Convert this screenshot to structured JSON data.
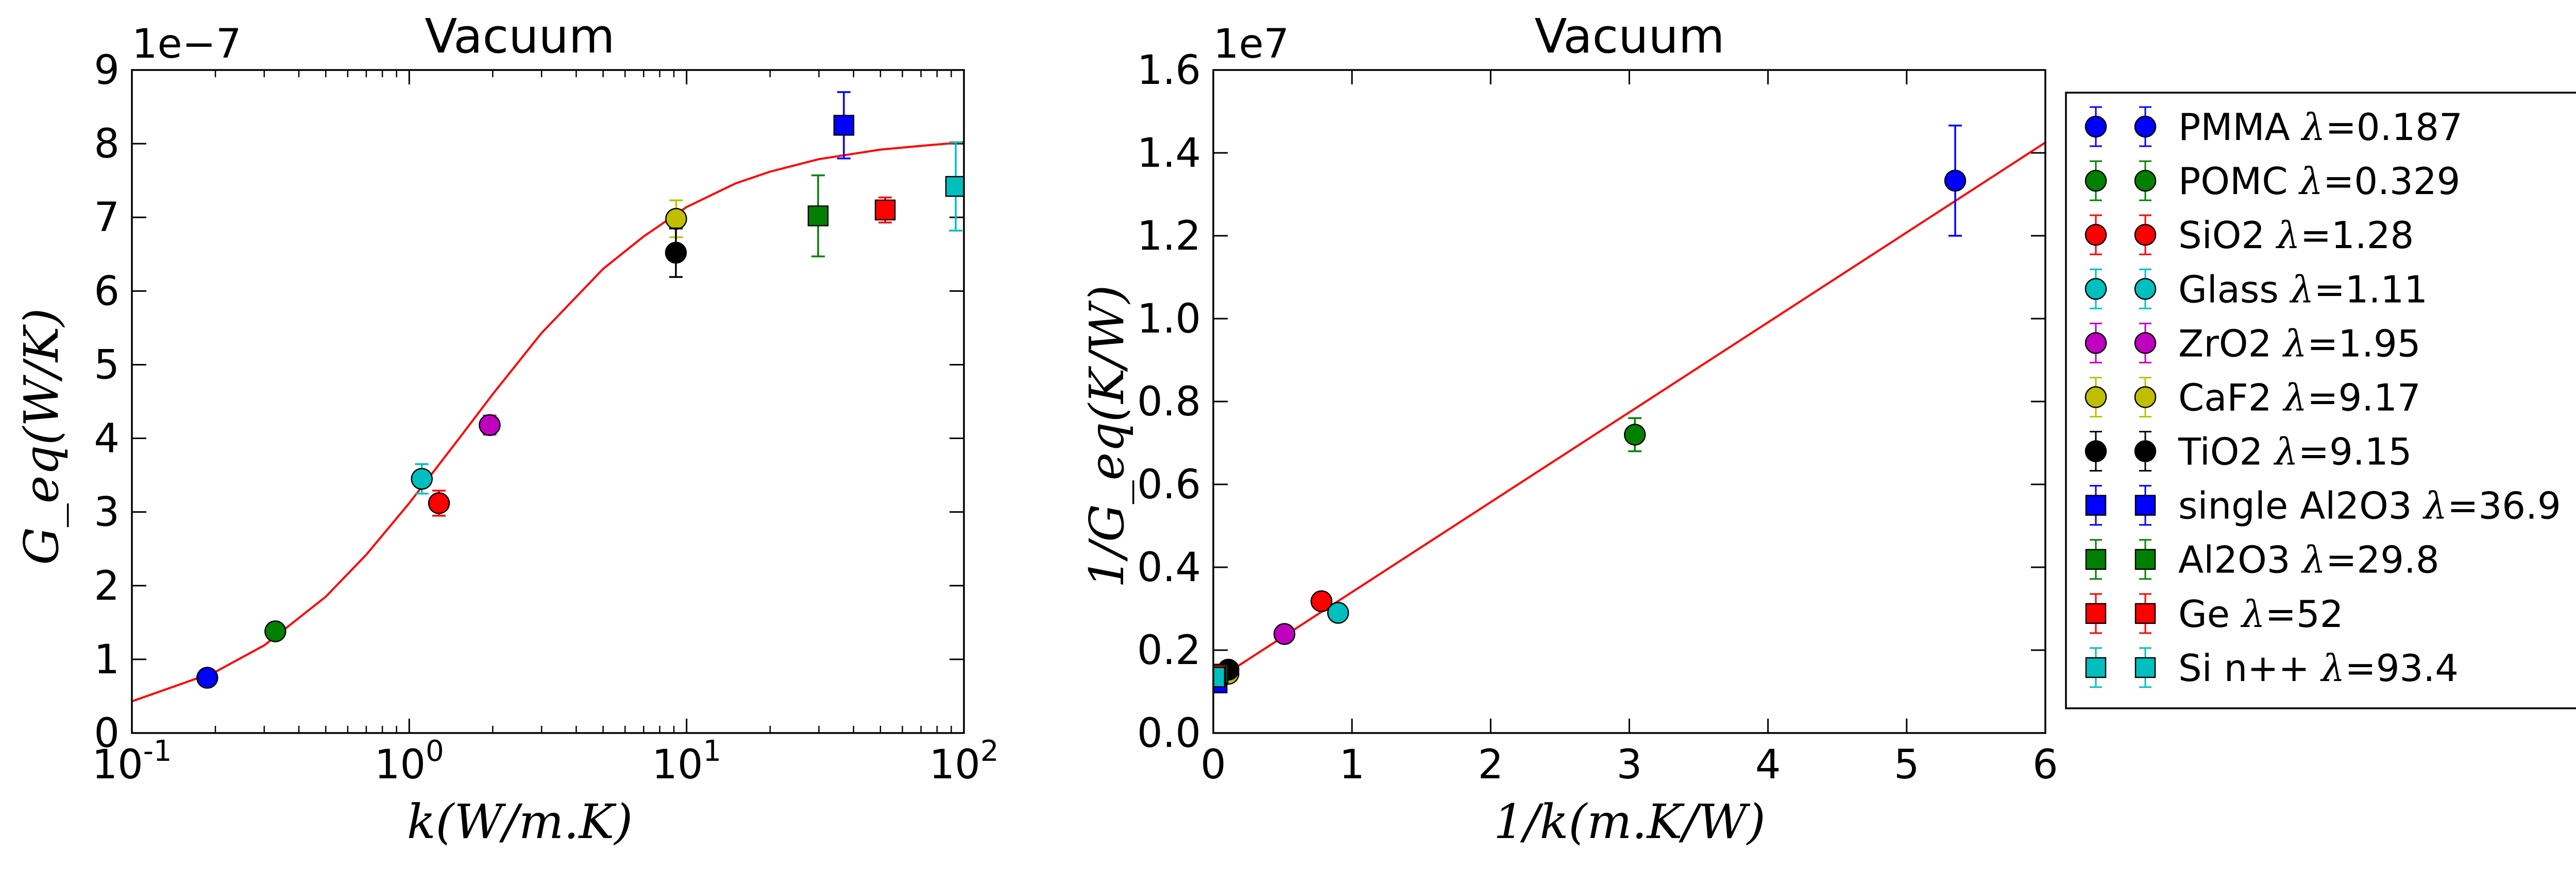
{
  "chart_data": [
    {
      "type": "scatter",
      "title": "Vacuum",
      "xlabel": "k(W/m.K)",
      "ylabel": "G_eq(W/K)",
      "xscale": "log",
      "xlim": [
        0.1,
        100
      ],
      "ylim": [
        0,
        9
      ],
      "y_multiplier": "1e−7",
      "x_ticks": [
        0.1,
        1,
        10,
        100
      ],
      "x_tick_labels": [
        [
          "10",
          "-1"
        ],
        [
          "10",
          "0"
        ],
        [
          "10",
          "1"
        ],
        [
          "10",
          "2"
        ]
      ],
      "y_ticks": [
        0,
        1,
        2,
        3,
        4,
        5,
        6,
        7,
        8,
        9
      ],
      "y_tick_labels": [
        "0",
        "1",
        "2",
        "3",
        "4",
        "5",
        "6",
        "7",
        "8",
        "9"
      ],
      "fit_curve": {
        "color": "#ff0000",
        "x": [
          0.1,
          0.2,
          0.3,
          0.5,
          0.7,
          1.0,
          1.5,
          2.0,
          3.0,
          5.0,
          7.0,
          10,
          15,
          20,
          30,
          50,
          70,
          100
        ],
        "y": [
          0.43,
          0.83,
          1.19,
          1.85,
          2.42,
          3.12,
          3.98,
          4.6,
          5.43,
          6.3,
          6.74,
          7.14,
          7.46,
          7.62,
          7.79,
          7.92,
          7.97,
          8.02
        ]
      },
      "series": [
        {
          "name": "PMMA",
          "marker": "circle",
          "color": "#0000ff",
          "x": 0.187,
          "y": 0.75,
          "err": 0
        },
        {
          "name": "POMC",
          "marker": "circle",
          "color": "#008000",
          "x": 0.329,
          "y": 1.38,
          "err": 0
        },
        {
          "name": "SiO2",
          "marker": "circle",
          "color": "#ff0000",
          "x": 1.28,
          "y": 3.12,
          "err": 0.17
        },
        {
          "name": "Glass",
          "marker": "circle",
          "color": "#00bfbf",
          "x": 1.11,
          "y": 3.45,
          "err": 0.2
        },
        {
          "name": "ZrO2",
          "marker": "circle",
          "color": "#bf00bf",
          "x": 1.95,
          "y": 4.18,
          "err": 0.13
        },
        {
          "name": "CaF2",
          "marker": "circle",
          "color": "#bfbf00",
          "x": 9.17,
          "y": 6.98,
          "err": 0.25
        },
        {
          "name": "TiO2",
          "marker": "circle",
          "color": "#000000",
          "x": 9.15,
          "y": 6.52,
          "err": 0.33
        },
        {
          "name": "single Al2O3",
          "marker": "square",
          "color": "#0000ff",
          "x": 36.9,
          "y": 8.25,
          "err": 0.45
        },
        {
          "name": "Al2O3",
          "marker": "square",
          "color": "#008000",
          "x": 29.8,
          "y": 7.02,
          "err": 0.55
        },
        {
          "name": "Ge",
          "marker": "square",
          "color": "#ff0000",
          "x": 52,
          "y": 7.1,
          "err": 0.17
        },
        {
          "name": "Si n++",
          "marker": "square",
          "color": "#00bfbf",
          "x": 93.4,
          "y": 7.42,
          "err": 0.6
        }
      ]
    },
    {
      "type": "scatter",
      "title": "Vacuum",
      "xlabel": "1/k(m.K/W)",
      "ylabel": "1/G_eq(K/W)",
      "xlim": [
        0,
        6
      ],
      "ylim": [
        0,
        1.6
      ],
      "y_multiplier": "1e7",
      "x_ticks": [
        0,
        1,
        2,
        3,
        4,
        5,
        6
      ],
      "x_tick_labels": [
        "0",
        "1",
        "2",
        "3",
        "4",
        "5",
        "6"
      ],
      "y_ticks": [
        0,
        0.2,
        0.4,
        0.6,
        0.8,
        1.0,
        1.2,
        1.4,
        1.6
      ],
      "y_tick_labels": [
        "0.0",
        "0.2",
        "0.4",
        "0.6",
        "0.8",
        "1.0",
        "1.2",
        "1.4",
        "1.6"
      ],
      "fit_line": {
        "color": "#ff0000",
        "x": [
          0,
          6
        ],
        "y": [
          0.123,
          1.425
        ]
      },
      "series": [
        {
          "name": "PMMA",
          "marker": "circle",
          "color": "#0000ff",
          "x": 5.35,
          "y": 1.333,
          "err": 0.133
        },
        {
          "name": "POMC",
          "marker": "circle",
          "color": "#008000",
          "x": 3.04,
          "y": 0.72,
          "err": 0.04
        },
        {
          "name": "SiO2",
          "marker": "circle",
          "color": "#ff0000",
          "x": 0.78,
          "y": 0.318,
          "err": 0.016
        },
        {
          "name": "Glass",
          "marker": "circle",
          "color": "#00bfbf",
          "x": 0.9,
          "y": 0.29,
          "err": 0
        },
        {
          "name": "ZrO2",
          "marker": "circle",
          "color": "#bf00bf",
          "x": 0.513,
          "y": 0.239,
          "err": 0
        },
        {
          "name": "CaF2",
          "marker": "circle",
          "color": "#bfbf00",
          "x": 0.109,
          "y": 0.143,
          "err": 0
        },
        {
          "name": "TiO2",
          "marker": "circle",
          "color": "#000000",
          "x": 0.109,
          "y": 0.153,
          "err": 0
        },
        {
          "name": "single Al2O3",
          "marker": "square",
          "color": "#0000ff",
          "x": 0.027,
          "y": 0.121,
          "err": 0
        },
        {
          "name": "Al2O3",
          "marker": "square",
          "color": "#008000",
          "x": 0.034,
          "y": 0.142,
          "err": 0
        },
        {
          "name": "Ge",
          "marker": "square",
          "color": "#ff0000",
          "x": 0.019,
          "y": 0.141,
          "err": 0
        },
        {
          "name": "Si n++",
          "marker": "square",
          "color": "#00bfbf",
          "x": 0.011,
          "y": 0.135,
          "err": 0
        }
      ]
    }
  ],
  "legend": {
    "placement": "right",
    "lambda_symbol": "λ",
    "entries": [
      {
        "name": "PMMA",
        "value": "=0.187",
        "marker": "circle",
        "color": "#0000ff"
      },
      {
        "name": "POMC",
        "value": "=0.329",
        "marker": "circle",
        "color": "#008000"
      },
      {
        "name": "SiO2",
        "value": "=1.28",
        "marker": "circle",
        "color": "#ff0000"
      },
      {
        "name": "Glass",
        "value": "=1.11",
        "marker": "circle",
        "color": "#00bfbf"
      },
      {
        "name": "ZrO2",
        "value": "=1.95",
        "marker": "circle",
        "color": "#bf00bf"
      },
      {
        "name": "CaF2",
        "value": "=9.17",
        "marker": "circle",
        "color": "#bfbf00"
      },
      {
        "name": "TiO2",
        "value": "=9.15",
        "marker": "circle",
        "color": "#000000"
      },
      {
        "name": "single Al2O3",
        "value": "=36.9",
        "marker": "square",
        "color": "#0000ff"
      },
      {
        "name": "Al2O3",
        "value": "=29.8",
        "marker": "square",
        "color": "#008000"
      },
      {
        "name": "Ge",
        "value": "=52",
        "marker": "square",
        "color": "#ff0000"
      },
      {
        "name": "Si n++",
        "value": "=93.4",
        "marker": "square",
        "color": "#00bfbf"
      }
    ]
  }
}
